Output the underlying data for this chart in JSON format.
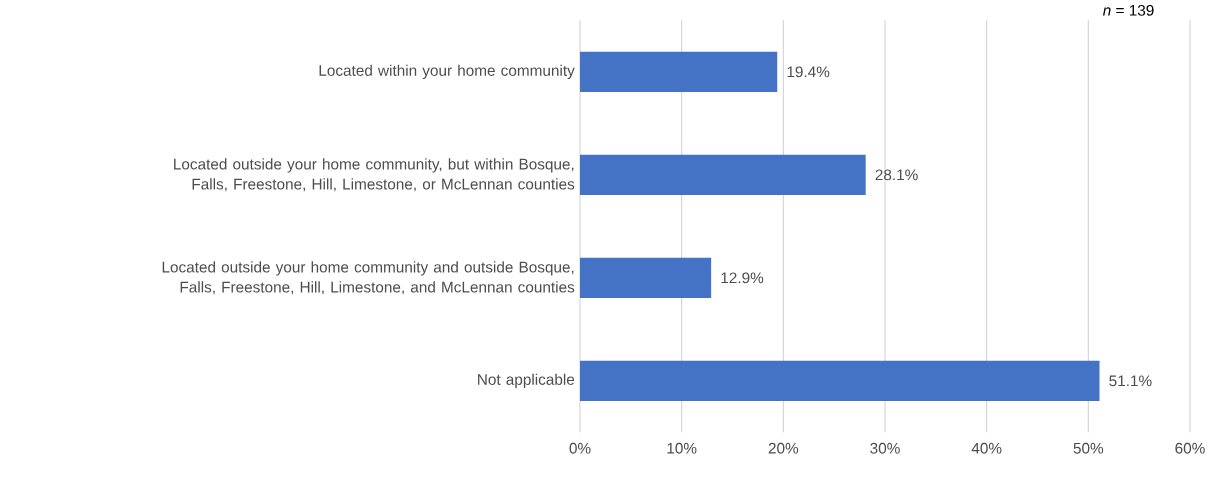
{
  "chart_data": {
    "type": "bar",
    "orientation": "horizontal",
    "categories": [
      "Located within your home community",
      "Located outside your home community, but within Bosque, Falls, Freestone, Hill, Limestone, or McLennan counties",
      "Located outside your home community and outside Bosque, Falls, Freestone, Hill, Limestone, and McLennan counties",
      "Not applicable"
    ],
    "values": [
      19.4,
      28.1,
      12.9,
      51.1
    ],
    "value_labels": [
      "19.4%",
      "28.1%",
      "12.9%",
      "51.1%"
    ],
    "color": "#4472c4",
    "xlim": [
      0,
      60
    ],
    "xticks": [
      {
        "value": 0,
        "label": "0%"
      },
      {
        "value": 10,
        "label": "10%"
      },
      {
        "value": 20,
        "label": "20%"
      },
      {
        "value": 30,
        "label": "30%"
      },
      {
        "value": 40,
        "label": "40%"
      },
      {
        "value": 50,
        "label": "50%"
      },
      {
        "value": 60,
        "label": "60%"
      }
    ],
    "grid": "x",
    "annotations": [
      "*n* = 139"
    ]
  }
}
